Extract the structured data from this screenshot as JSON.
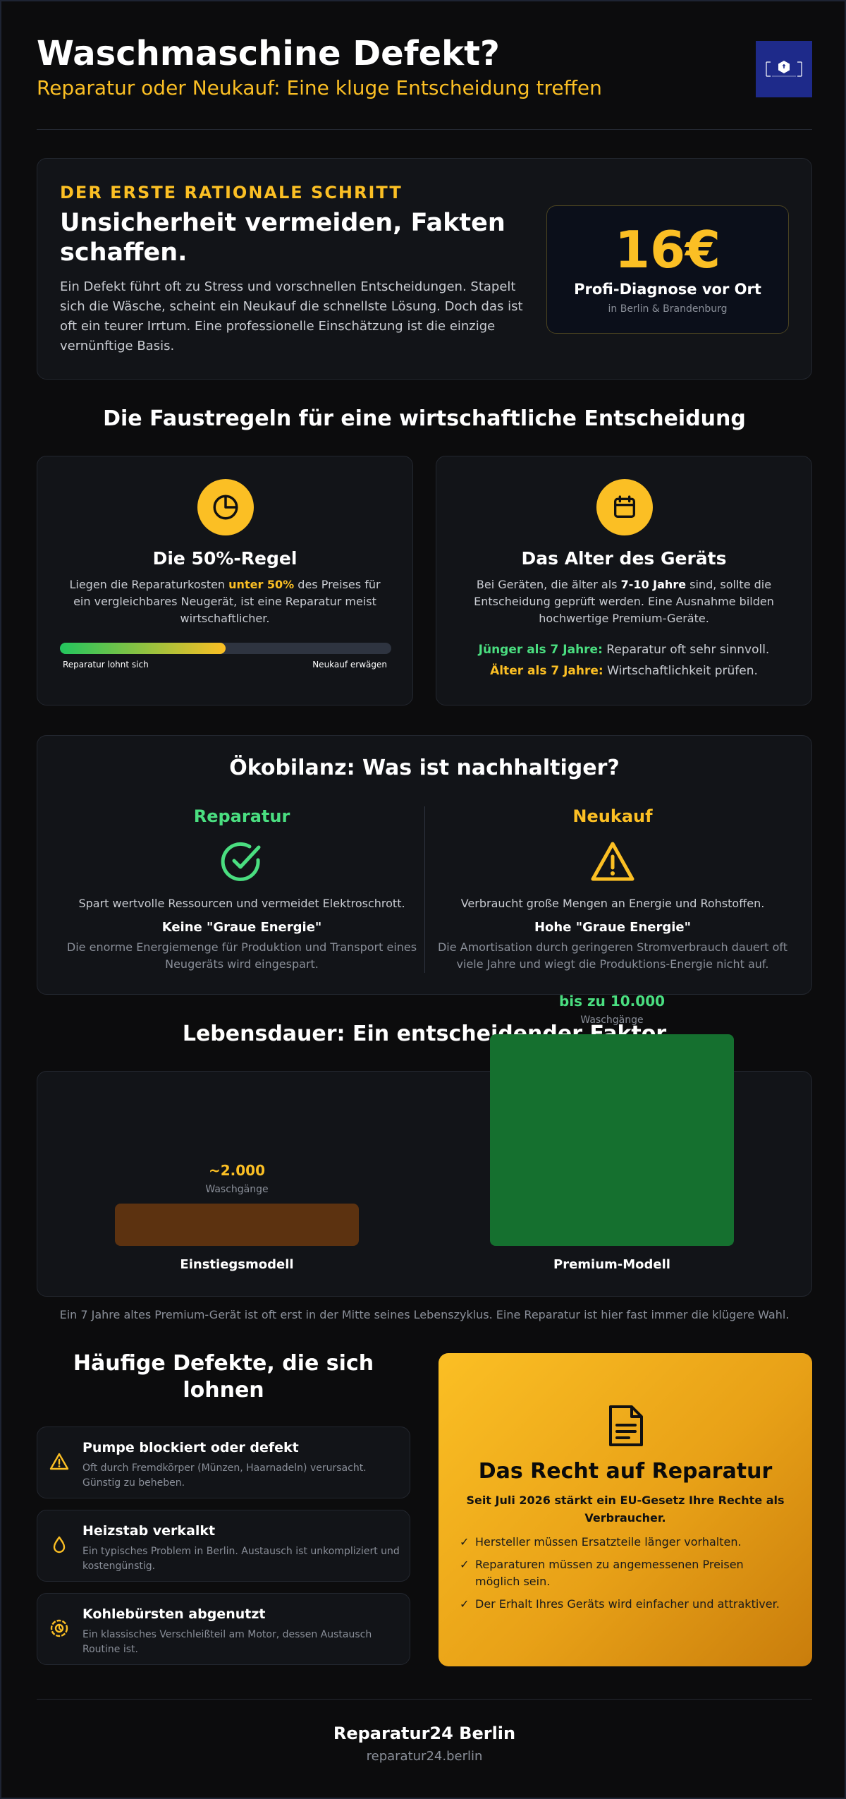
{
  "header": {
    "title": "Waschmaschine Defekt?",
    "subtitle": "Reparatur oder Neukauf: Eine kluge Entscheidung treffen"
  },
  "intro": {
    "kicker": "DER ERSTE RATIONALE SCHRITT",
    "headline": "Unsicherheit vermeiden, Fakten schaffen.",
    "text": "Ein Defekt führt oft zu Stress und vorschnellen Entscheidungen. Stapelt sich die Wäsche, scheint ein Neukauf die schnellste Lösung. Doch das ist oft ein teurer Irrtum. Eine professionelle Einschätzung ist die einzige vernünftige Basis.",
    "price": "16€",
    "price_label": "Profi-Diagnose vor Ort",
    "price_region": "in Berlin & Brandenburg"
  },
  "rules": {
    "section_title": "Die Faustregeln für eine wirtschaftliche Entscheidung",
    "rule1": {
      "title": "Die 50%-Regel",
      "text_before": "Liegen die Reparaturkosten ",
      "text_highlight": "unter 50%",
      "text_after": " des Preises für ein vergleichbares Neugerät, ist eine Reparatur meist wirtschaftlicher.",
      "bar_fraction": 0.5,
      "bar_left_label": "Reparatur lohnt sich",
      "bar_right_label": "Neukauf erwägen"
    },
    "rule2": {
      "title": "Das Alter des Geräts",
      "text_before": "Bei Geräten, die älter als ",
      "text_highlight": "7-10 Jahre",
      "text_after": " sind, sollte die Entscheidung geprüft werden. Eine Ausnahme bilden hochwertige Premium-Geräte.",
      "young_key": "Jünger als 7 Jahre:",
      "young_value": "Reparatur oft sehr sinnvoll.",
      "old_key": "Älter als 7 Jahre:",
      "old_value": "Wirtschaftlichkeit prüfen."
    }
  },
  "eco": {
    "title": "Ökobilanz: Was ist nachhaltiger?",
    "repair": {
      "heading": "Reparatur",
      "description": "Spart wertvolle Ressourcen und vermeidet Elektroschrott.",
      "subheading": "Keine \"Graue Energie\"",
      "detail": "Die enorme Energiemenge für Produktion und Transport eines Neugeräts wird eingespart."
    },
    "new": {
      "heading": "Neukauf",
      "description": "Verbraucht große Mengen an Energie und Rohstoffen.",
      "subheading": "Hohe \"Graue Energie\"",
      "detail": "Die Amortisation durch geringeren Stromverbrauch dauert oft viele Jahre und wiegt die Produktions-Energie nicht auf."
    }
  },
  "lifespan": {
    "title": "Lebensdauer: Ein entscheidender Faktor",
    "note": "Ein 7 Jahre altes Premium-Gerät ist oft erst in der Mitte seines Lebenszyklus. Eine Reparatur ist hier fast immer die klügere Wahl."
  },
  "chart_data": {
    "type": "bar",
    "categories": [
      "Einstiegsmodell",
      "Premium-Modell"
    ],
    "values": [
      2000,
      10000
    ],
    "value_labels": [
      "~2.000",
      "bis zu 10.000"
    ],
    "unit_label": "Waschgänge",
    "colors": [
      "#5c3210",
      "#15702f"
    ],
    "label_colors": [
      "#fbbf24",
      "#4ade80"
    ]
  },
  "defects": {
    "title": "Häufige Defekte, die sich lohnen",
    "items": [
      {
        "name": "Pumpe blockiert oder defekt",
        "desc": "Oft durch Fremdkörper (Münzen, Haarnadeln) verursacht. Günstig zu beheben.",
        "icon": "warning-icon"
      },
      {
        "name": "Heizstab verkalkt",
        "desc": "Ein typisches Problem in Berlin. Austausch ist unkompliziert und kostengünstig.",
        "icon": "water-drop-icon"
      },
      {
        "name": "Kohlebürsten abgenutzt",
        "desc": "Ein klassisches Verschleißteil am Motor, dessen Austausch Routine ist.",
        "icon": "wrench-cog-icon"
      }
    ]
  },
  "rights": {
    "title": "Das Recht auf Reparatur",
    "subtitle": "Seit Juli 2026 stärkt ein EU-Gesetz Ihre Rechte als Verbraucher.",
    "points": [
      "Hersteller müssen Ersatzteile länger vorhalten.",
      "Reparaturen müssen zu angemessenen Preisen möglich sein.",
      "Der Erhalt Ihres Geräts wird einfacher und attraktiver."
    ]
  },
  "footer": {
    "brand": "Reparatur24 Berlin",
    "url": "reparatur24.berlin"
  },
  "colors": {
    "accent": "#fbbf24",
    "green": "#4ade80",
    "background": "#0c0c0d",
    "card": "#121418"
  }
}
